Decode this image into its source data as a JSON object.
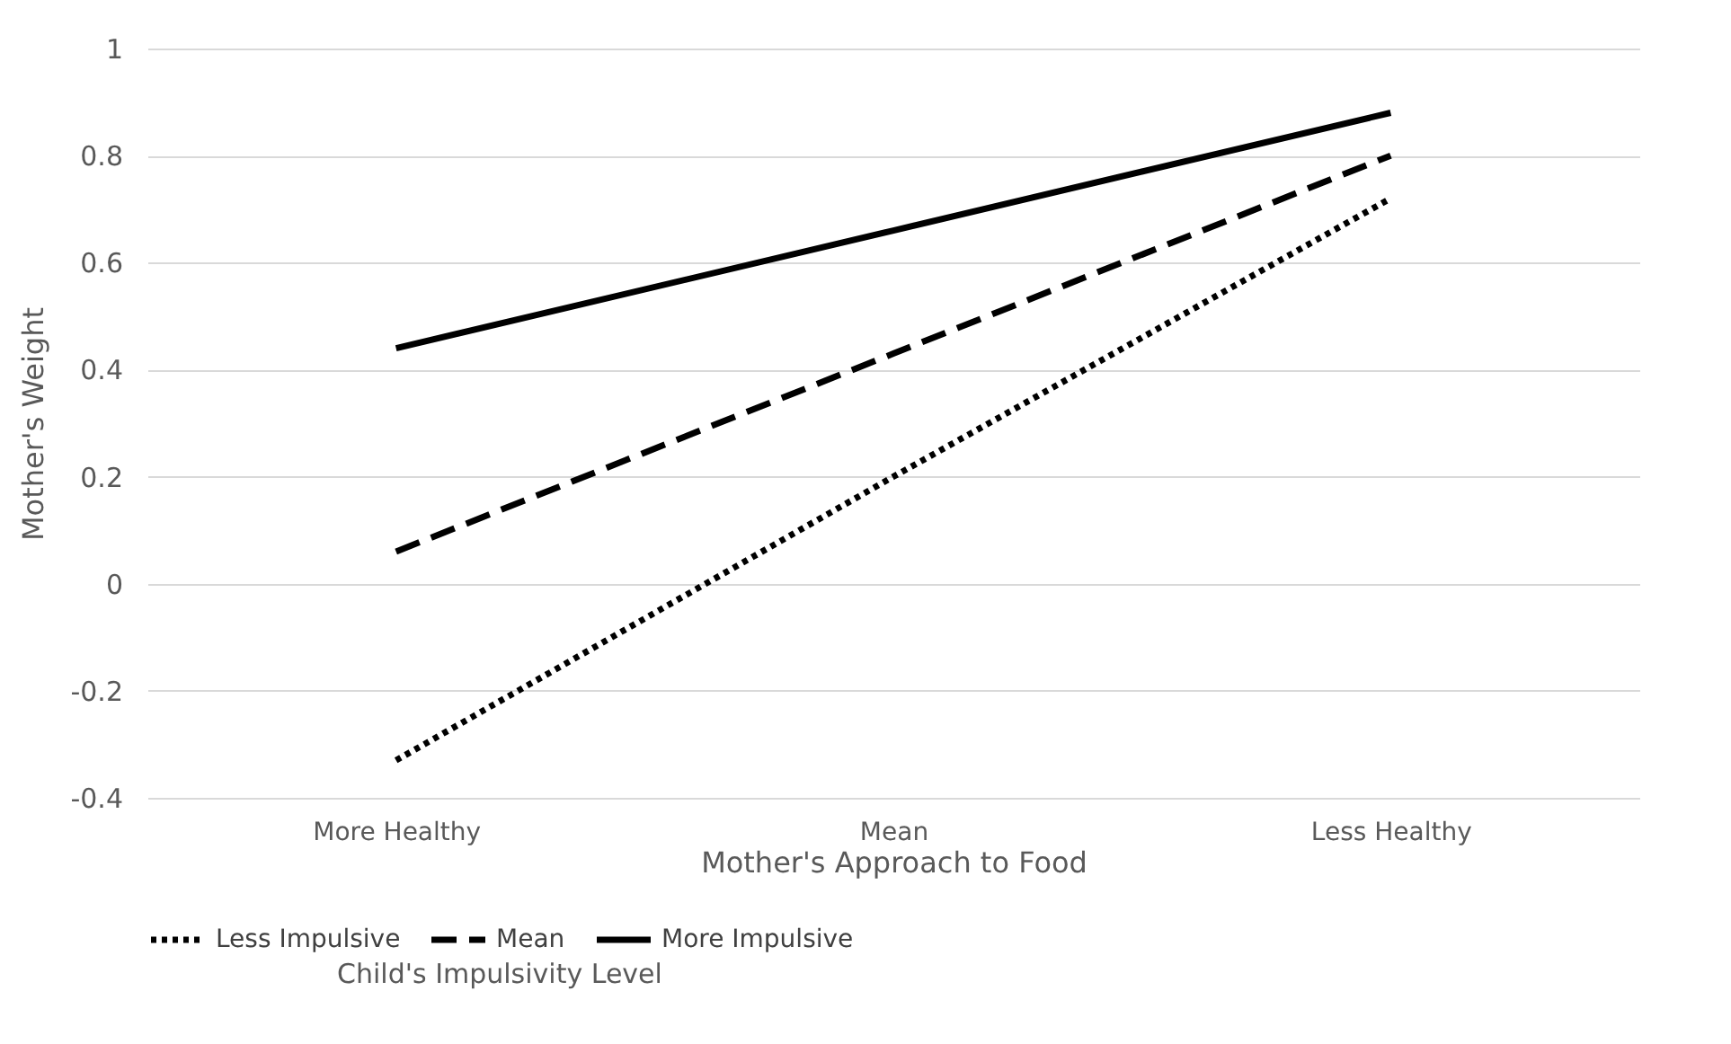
{
  "chart_data": {
    "type": "line",
    "xlabel": "Mother's Approach to Food",
    "ylabel": "Mother's Weight",
    "legend_title": "Child's Impulsivity Level",
    "categories": [
      "More Healthy",
      "Mean",
      "Less Healthy"
    ],
    "series": [
      {
        "name": "Less Impulsive",
        "color": "#000000",
        "line_style": "dotted",
        "values": [
          -0.33,
          0.2,
          0.72
        ]
      },
      {
        "name": "Mean",
        "color": "#000000",
        "line_style": "dashed",
        "values": [
          0.06,
          0.43,
          0.8
        ]
      },
      {
        "name": "More Impulsive",
        "color": "#000000",
        "line_style": "solid",
        "values": [
          0.44,
          0.66,
          0.88
        ]
      }
    ],
    "ylim": [
      -0.4,
      1
    ],
    "yticks": [
      -0.4,
      -0.2,
      0,
      0.2,
      0.4,
      0.6,
      0.8,
      1
    ],
    "grid": "y",
    "legend": "bottom",
    "marker": "none"
  }
}
